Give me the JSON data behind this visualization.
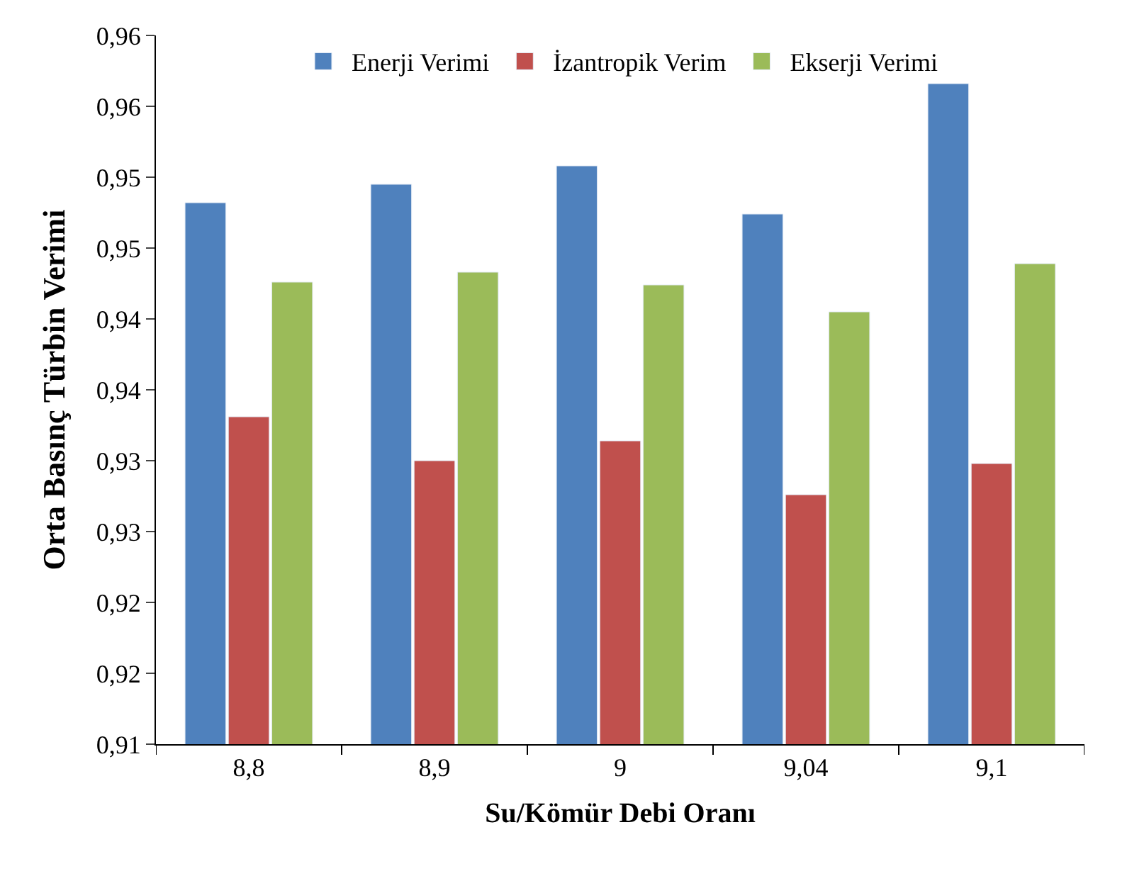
{
  "chart_data": {
    "type": "bar",
    "xlabel": "Su/Kömür Debi Oranı",
    "ylabel": "Orta Basınç Türbin Verimi",
    "categories": [
      "8,8",
      "8,9",
      "9",
      "9,04",
      "9,1"
    ],
    "series": [
      {
        "name": "Enerji Verimi",
        "color": "#4f81bd",
        "values": [
          0.9482,
          0.9495,
          0.9508,
          0.9474,
          0.9566
        ]
      },
      {
        "name": "İzantropik Verim",
        "color": "#c0504d",
        "values": [
          0.9331,
          0.93,
          0.9314,
          0.9276,
          0.9298
        ]
      },
      {
        "name": "Ekserji Verimi",
        "color": "#9bbb59",
        "values": [
          0.9426,
          0.9433,
          0.9424,
          0.9405,
          0.9439
        ]
      }
    ],
    "ylim": [
      0.91,
      0.96
    ],
    "yticks": [
      {
        "value": 0.91,
        "label": "0,91"
      },
      {
        "value": 0.915,
        "label": "0,92"
      },
      {
        "value": 0.92,
        "label": "0,92"
      },
      {
        "value": 0.925,
        "label": "0,93"
      },
      {
        "value": 0.93,
        "label": "0,93"
      },
      {
        "value": 0.935,
        "label": "0,94"
      },
      {
        "value": 0.94,
        "label": "0,94"
      },
      {
        "value": 0.945,
        "label": "0,95"
      },
      {
        "value": 0.95,
        "label": "0,95"
      },
      {
        "value": 0.955,
        "label": "0,96"
      },
      {
        "value": 0.96,
        "label": "0,96"
      }
    ],
    "legend": "top"
  }
}
